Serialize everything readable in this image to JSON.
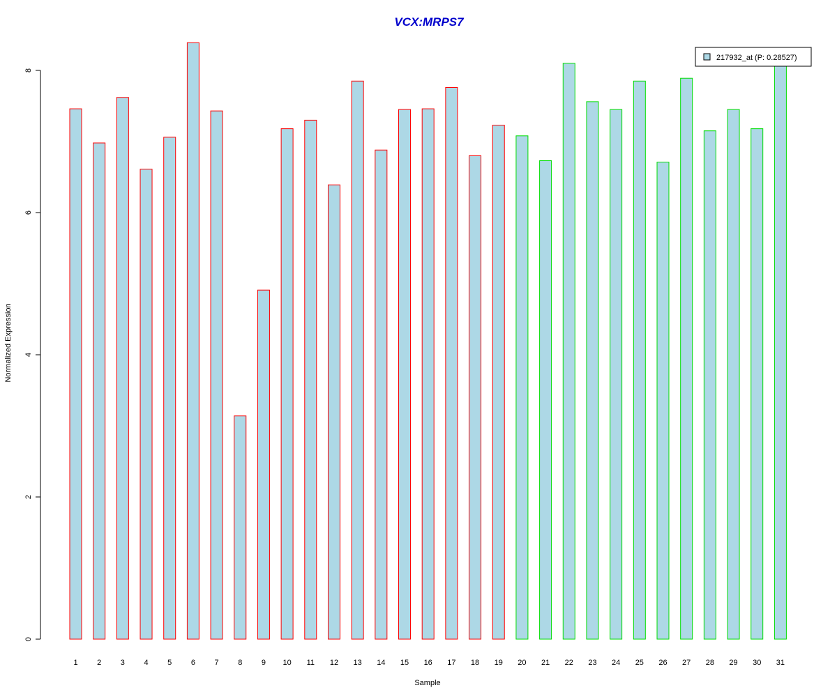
{
  "chart_data": {
    "type": "bar",
    "title": "VCX:MRPS7",
    "xlabel": "Sample",
    "ylabel": "Normalized Expression",
    "ylim": [
      0,
      8.4
    ],
    "yticks": [
      0,
      2,
      4,
      6,
      8
    ],
    "categories": [
      "1",
      "2",
      "3",
      "4",
      "5",
      "6",
      "7",
      "8",
      "9",
      "10",
      "11",
      "12",
      "13",
      "14",
      "15",
      "16",
      "17",
      "18",
      "19",
      "20",
      "21",
      "22",
      "23",
      "24",
      "25",
      "26",
      "27",
      "28",
      "29",
      "30",
      "31"
    ],
    "series": [
      {
        "name": "217932_at (P: 0.28527)",
        "values": [
          7.46,
          6.98,
          7.62,
          6.61,
          7.06,
          8.39,
          7.43,
          3.14,
          4.91,
          7.18,
          7.3,
          6.39,
          7.85,
          6.88,
          7.45,
          7.46,
          7.76,
          6.8,
          7.23,
          7.08,
          6.73,
          8.1,
          7.56,
          7.45,
          7.85,
          6.71,
          7.89,
          7.15,
          7.45,
          7.18,
          8.08
        ]
      }
    ],
    "groups": [
      {
        "from": 1,
        "to": 19,
        "border_color": "#ff0000"
      },
      {
        "from": 20,
        "to": 31,
        "border_color": "#00dd00"
      }
    ],
    "bar_fill": "#add8e6",
    "title_color": "#0000cc",
    "grid": false,
    "legend_position": "top-right"
  }
}
